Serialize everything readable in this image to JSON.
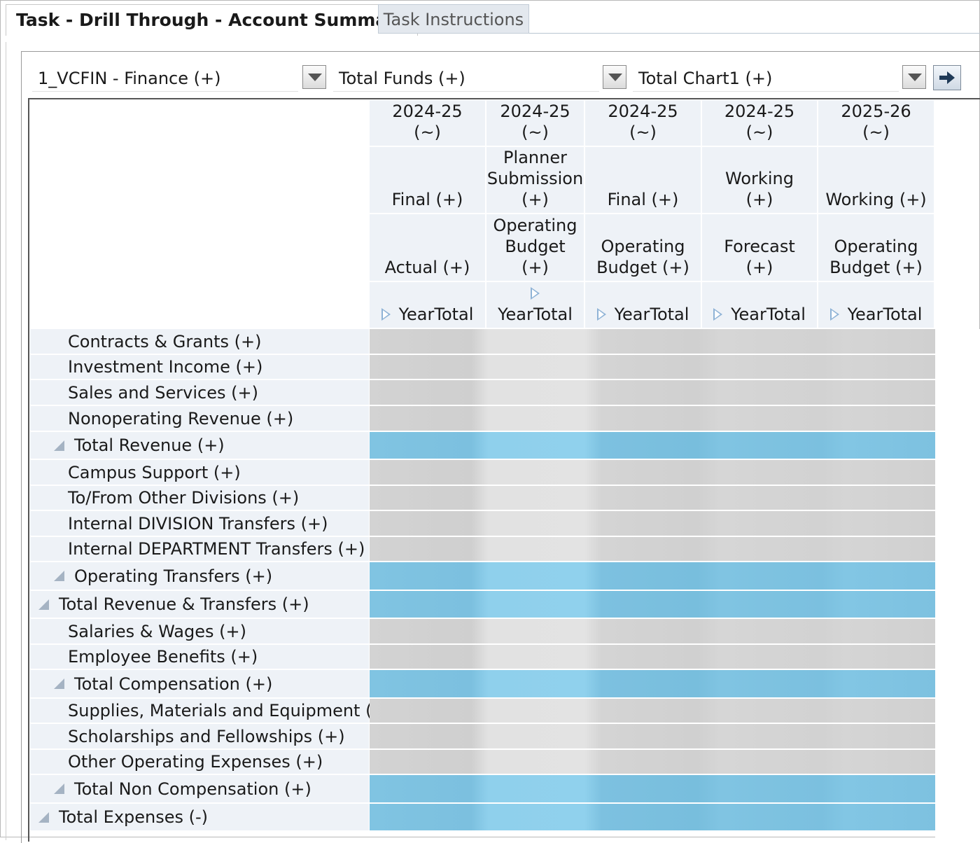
{
  "tabs": {
    "active": "Task - Drill Through - Account Summary",
    "inactive": "Task Instructions"
  },
  "pov": {
    "entity": "1_VCFIN - Finance (+)",
    "fund": "Total Funds (+)",
    "chart": "Total Chart1 (+)"
  },
  "columns": [
    {
      "year": "2024-25 (~)",
      "version": "Final (+)",
      "scenario": "Actual (+)",
      "period": "YearTotal"
    },
    {
      "year": "2024-25 (~)",
      "version": "Planner Submission (+)",
      "scenario": "Operating Budget (+)",
      "period": "YearTotal"
    },
    {
      "year": "2024-25 (~)",
      "version": "Final (+)",
      "scenario": "Operating Budget (+)",
      "period": "YearTotal"
    },
    {
      "year": "2024-25 (~)",
      "version": "Working (+)",
      "scenario": "Forecast (+)",
      "period": "YearTotal"
    },
    {
      "year": "2025-26 (~)",
      "version": "Working (+)",
      "scenario": "Operating Budget (+)",
      "period": "YearTotal"
    }
  ],
  "rows": [
    {
      "label": "Contracts & Grants (+)"
    },
    {
      "label": "Investment Income (+)"
    },
    {
      "label": "Sales and Services (+)"
    },
    {
      "label": "Nonoperating Revenue (+)"
    },
    {
      "label": "Total Revenue (+)"
    },
    {
      "label": "Campus Support (+)"
    },
    {
      "label": "To/From Other Divisions (+)"
    },
    {
      "label": "Internal DIVISION Transfers (+)"
    },
    {
      "label": "Internal DEPARTMENT Transfers (+)"
    },
    {
      "label": "Operating Transfers (+)"
    },
    {
      "label": "Total Revenue & Transfers (+)"
    },
    {
      "label": "Salaries & Wages (+)"
    },
    {
      "label": "Employee Benefits (+)"
    },
    {
      "label": "Total Compensation (+)"
    },
    {
      "label": "Supplies, Materials and Equipment (+)"
    },
    {
      "label": "Scholarships and Fellowships (+)"
    },
    {
      "label": "Other Operating Expenses (+)"
    },
    {
      "label": "Total Non Compensation (+)"
    },
    {
      "label": "Total Expenses (-)"
    }
  ]
}
